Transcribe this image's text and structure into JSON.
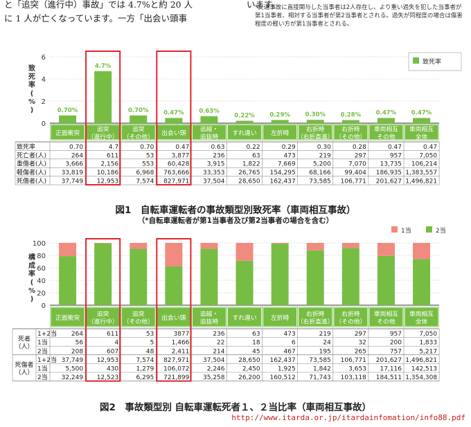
{
  "text": {
    "line1": "と「追突（進行中）事故」では 4.7%と約 20 人",
    "line2": "に 1 人が亡くなっています。一方「出会い頭事",
    "line3": "います。",
    "note": "*交通事故に直接関与した当事者は2人存在し、より重い過失を犯した当事者が第1当事者、相対する当事者が第2当事者とされる。過失が同程度の場合は傷害程度の軽い方が第1当事者とされる。"
  },
  "chart_data": [
    {
      "type": "bar",
      "title": "図1　自転車運転者の事故類型別致死率（車両相互事故）",
      "subtitle": "（*自転車運転者が第1当事者及び第2当事者の場合を含む）",
      "ylabel": "致死率（%）",
      "ylim": [
        0,
        6
      ],
      "yticks": [
        0,
        2,
        4,
        6
      ],
      "legend": "top-right",
      "color": "#77bd43",
      "highlight_color": "#e0262d",
      "categories": [
        "正面衝突",
        "追突\n（進行中）",
        "追突\n（その他）",
        "出会い頭",
        "追越・\n追抜時",
        "すれ違い",
        "左折時",
        "右折時\n（右折直進）",
        "右折時\n（その他）",
        "車両相互\nその他",
        "車両相互\n全体"
      ],
      "highlight": [
        1,
        3
      ],
      "series": [
        {
          "name": "致死率",
          "values": [
            0.7,
            4.7,
            0.7,
            0.47,
            0.63,
            0.22,
            0.29,
            0.3,
            0.28,
            0.47,
            0.47
          ],
          "labels": [
            "0.70%",
            "4.7%",
            "0.70%",
            "0.47%",
            "0.63%",
            "0.22%",
            "0.29%",
            "0.30%",
            "0.28%",
            "0.47%",
            "0.47%"
          ]
        }
      ],
      "table": {
        "rows": [
          {
            "label": "致死率",
            "cells": [
              "0.70",
              "4.7",
              "0.70",
              "0.47",
              "0.63",
              "0.22",
              "0.29",
              "0.30",
              "0.28",
              "0.47",
              "0.47"
            ]
          },
          {
            "label": "死亡者(人)",
            "cells": [
              "264",
              "611",
              "53",
              "3,877",
              "236",
              "63",
              "473",
              "219",
              "297",
              "957",
              "7,050"
            ]
          },
          {
            "label": "重傷者(人)",
            "cells": [
              "3,666",
              "2,156",
              "553",
              "60,428",
              "3,915",
              "1,822",
              "7,669",
              "5,200",
              "7,070",
              "13,735",
              "106,214"
            ]
          },
          {
            "label": "軽傷者(人)",
            "cells": [
              "33,819",
              "10,186",
              "6,968",
              "763,666",
              "33,353",
              "26,765",
              "154,295",
              "68,166",
              "99,404",
              "186,935",
              "1,383,557"
            ]
          },
          {
            "label": "死傷者(人)",
            "cells": [
              "37,749",
              "12,953",
              "7,574",
              "827,971",
              "37,504",
              "28,650",
              "162,437",
              "73,585",
              "106,771",
              "201,627",
              "1,496,821"
            ]
          }
        ]
      }
    },
    {
      "type": "bar",
      "stacked": true,
      "title": "図2　事故類型別 自転車運転死者１、２当比率（車両相互事故）",
      "ylabel": "構成率（%）",
      "ylim": [
        0,
        100
      ],
      "yticks": [
        0,
        20,
        40,
        60,
        80,
        100
      ],
      "legend": "top-right",
      "categories": [
        "正面衝突",
        "追突\n（進行中）",
        "追突\n（その他）",
        "出会い頭",
        "追越・\n追抜時",
        "すれ違い",
        "左折時",
        "右折時\n（右折直進）",
        "右折時\n（その他）",
        "車両相互\nその他",
        "車両相互\n全体"
      ],
      "highlight": [
        1,
        3
      ],
      "series": [
        {
          "name": "2当",
          "color": "#77bd43",
          "values": [
            78.8,
            99.3,
            90.6,
            62.2,
            90.7,
            71.4,
            98.7,
            88.1,
            91.9,
            79.1,
            74.0
          ]
        },
        {
          "name": "1当",
          "color": "#f08b80",
          "values": [
            21.2,
            0.7,
            9.4,
            37.8,
            9.3,
            28.6,
            1.3,
            11.9,
            8.1,
            20.9,
            26.0
          ]
        }
      ],
      "table": {
        "groups": [
          {
            "label": "死者\n（人）",
            "rows": [
              {
                "label": "1+2当",
                "cells": [
                  "264",
                  "611",
                  "53",
                  "3877",
                  "236",
                  "63",
                  "473",
                  "219",
                  "297",
                  "957",
                  "7,050"
                ]
              },
              {
                "label": "1当",
                "cells": [
                  "56",
                  "4",
                  "5",
                  "1,466",
                  "22",
                  "18",
                  "6",
                  "24",
                  "32",
                  "200",
                  "1,833"
                ]
              },
              {
                "label": "2当",
                "cells": [
                  "208",
                  "607",
                  "48",
                  "2,411",
                  "214",
                  "45",
                  "467",
                  "195",
                  "265",
                  "757",
                  "5,217"
                ]
              }
            ]
          },
          {
            "label": "死傷者\n（人）",
            "rows": [
              {
                "label": "1+2当",
                "cells": [
                  "37,749",
                  "12,953",
                  "7,574",
                  "827,971",
                  "37,504",
                  "28,650",
                  "162,437",
                  "73,585",
                  "106,771",
                  "201,627",
                  "1,496,821"
                ]
              },
              {
                "label": "1当",
                "cells": [
                  "5,500",
                  "430",
                  "1,279",
                  "106,072",
                  "2,246",
                  "2,450",
                  "1,925",
                  "1,842",
                  "3,653",
                  "17,116",
                  "142,513"
                ]
              },
              {
                "label": "2当",
                "cells": [
                  "32,249",
                  "12,523",
                  "6,295",
                  "721,899",
                  "35,258",
                  "26,200",
                  "160,512",
                  "71,743",
                  "103,118",
                  "184,511",
                  "1,354,308"
                ]
              }
            ]
          }
        ]
      }
    }
  ],
  "source_url": "http://www.itarda.or.jp/itardainfomation/info88.pdf"
}
